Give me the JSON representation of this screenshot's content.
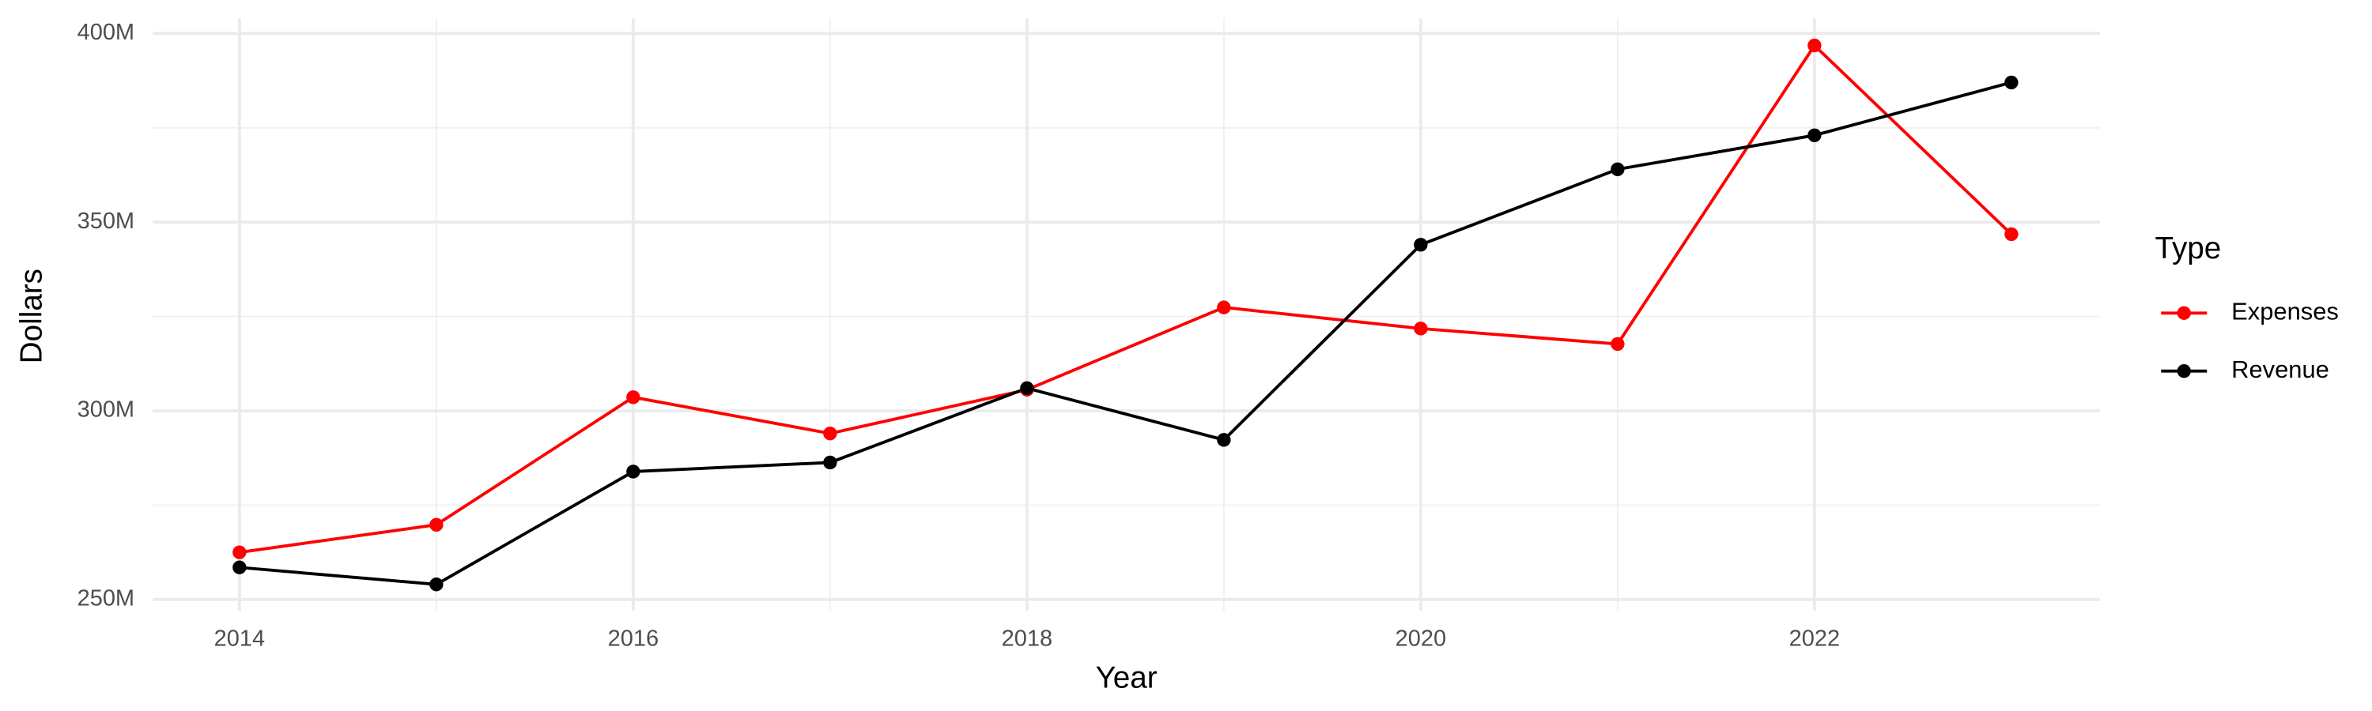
{
  "chart_data": {
    "type": "line",
    "x_label": "Year",
    "y_label": "Dollars",
    "legend_title": "Type",
    "legend_position": "right",
    "grid": true,
    "x": [
      2014,
      2015,
      2016,
      2017,
      2018,
      2019,
      2020,
      2021,
      2022,
      2023
    ],
    "series": [
      {
        "name": "Expenses",
        "color": "#ff0000",
        "values": [
          262500000,
          269800000,
          303600000,
          294000000,
          305600000,
          327400000,
          321800000,
          317700000,
          396800000,
          346800000
        ]
      },
      {
        "name": "Revenue",
        "color": "#000000",
        "values": [
          258500000,
          254000000,
          283900000,
          286300000,
          306000000,
          292300000,
          344000000,
          364000000,
          373000000,
          387000000
        ]
      }
    ],
    "xlim": [
      2013.56,
      2023.45
    ],
    "ylim": [
      247000000,
      404000000
    ],
    "xticks": [
      2014,
      2016,
      2018,
      2020,
      2022
    ],
    "yticks": [
      {
        "value": 250000000,
        "label": "250M"
      },
      {
        "value": 300000000,
        "label": "300M"
      },
      {
        "value": 350000000,
        "label": "350M"
      },
      {
        "value": 400000000,
        "label": "400M"
      }
    ]
  }
}
